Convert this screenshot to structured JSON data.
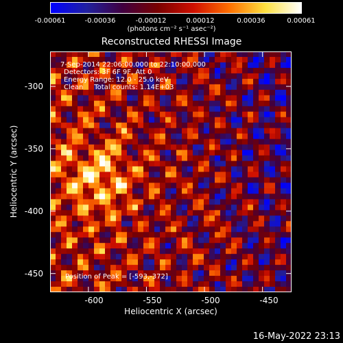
{
  "colorbar": {
    "ticks": [
      "-0.00061",
      "-0.00036",
      "-0.00012",
      "0.00012",
      "0.00036",
      "0.00061"
    ],
    "units": "(photons cm⁻² s⁻¹ asec⁻²)",
    "colors": [
      "#0000ff",
      "#2020a0",
      "#400040",
      "#7a0000",
      "#d01000",
      "#ff7000",
      "#ffe040",
      "#ffffff"
    ]
  },
  "chart_data": {
    "type": "heatmap",
    "title": "Reconstructed RHESSI Image",
    "xlabel": "Heliocentric X (arcsec)",
    "ylabel": "Heliocentric Y (arcsec)",
    "xlim": [
      -633,
      -425
    ],
    "ylim": [
      -465,
      -272
    ],
    "xticks": [
      "-600",
      "-550",
      "-500",
      "-450"
    ],
    "yticks": [
      "-300",
      "-350",
      "-400",
      "-450"
    ],
    "zlim": [
      -0.00061,
      0.00061
    ],
    "peak": [
      -593,
      -372
    ],
    "annotations": {
      "line1": "7-Sep-2014 22:06:00.000 to 22:10:00.000",
      "line2": "Detectors: 3F 6F 9F, Att 0",
      "line3": "Energy Range: 12.0 - 25.0 keV",
      "line4": "Clean     Total counts: 1.14E+03",
      "peak_label": "Position of Peak = [-593,-372]"
    }
  },
  "footer": {
    "timestamp": "16-May-2022 23:13"
  }
}
